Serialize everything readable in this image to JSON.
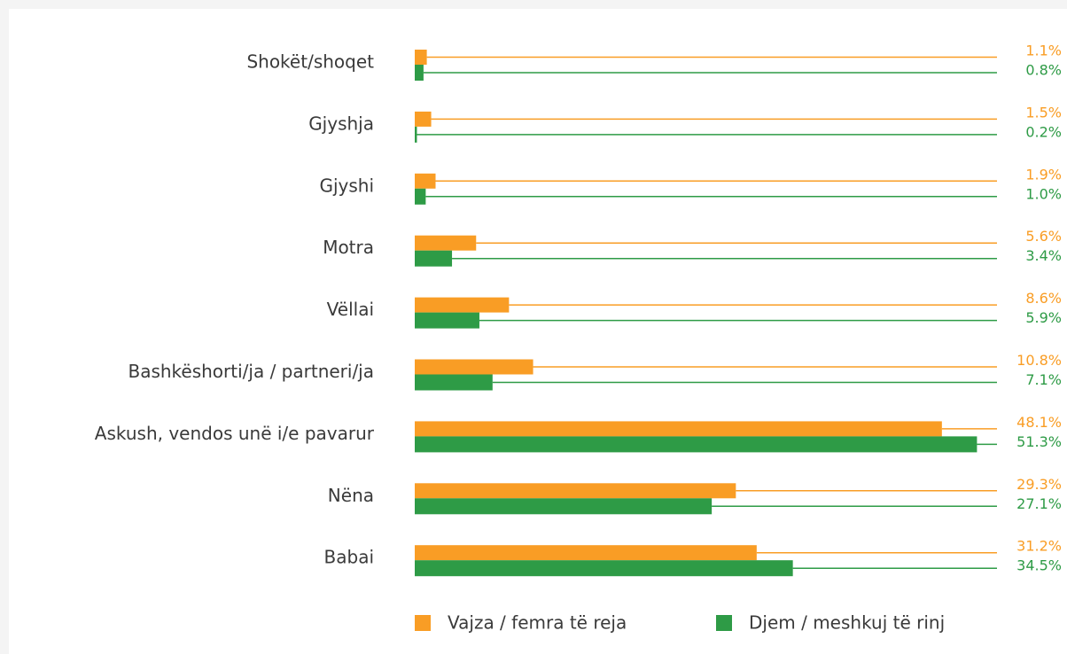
{
  "chart_data": {
    "type": "bar",
    "orientation": "horizontal",
    "categories": [
      "Shokët/shoqet",
      "Gjyshja",
      "Gjyshi",
      "Motra",
      "Vëllai",
      "Bashkëshorti/ja / partneri/ja",
      "Askush, vendos unë i/e pavarur",
      "Nëna",
      "Babai"
    ],
    "series": [
      {
        "name": "Vajza / femra të reja",
        "color": "#f99d25",
        "values": [
          1.1,
          1.5,
          1.9,
          5.6,
          8.6,
          10.8,
          48.1,
          29.3,
          31.2
        ],
        "value_labels": [
          "1.1%",
          "1.5%",
          "1.9%",
          "5.6%",
          "8.6%",
          "10.8%",
          "48.1%",
          "29.3%",
          "31.2%"
        ]
      },
      {
        "name": "Djem / meshkuj të rinj",
        "color": "#2e9b46",
        "values": [
          0.8,
          0.2,
          1.0,
          3.4,
          5.9,
          7.1,
          51.3,
          27.1,
          34.5
        ],
        "value_labels": [
          "0.8%",
          "0.2%",
          "1.0%",
          "3.4%",
          "5.9%",
          "7.1%",
          "51.3%",
          "27.1%",
          "34.5%"
        ]
      }
    ],
    "xlim": [
      0,
      60
    ],
    "legend": "bottom"
  }
}
